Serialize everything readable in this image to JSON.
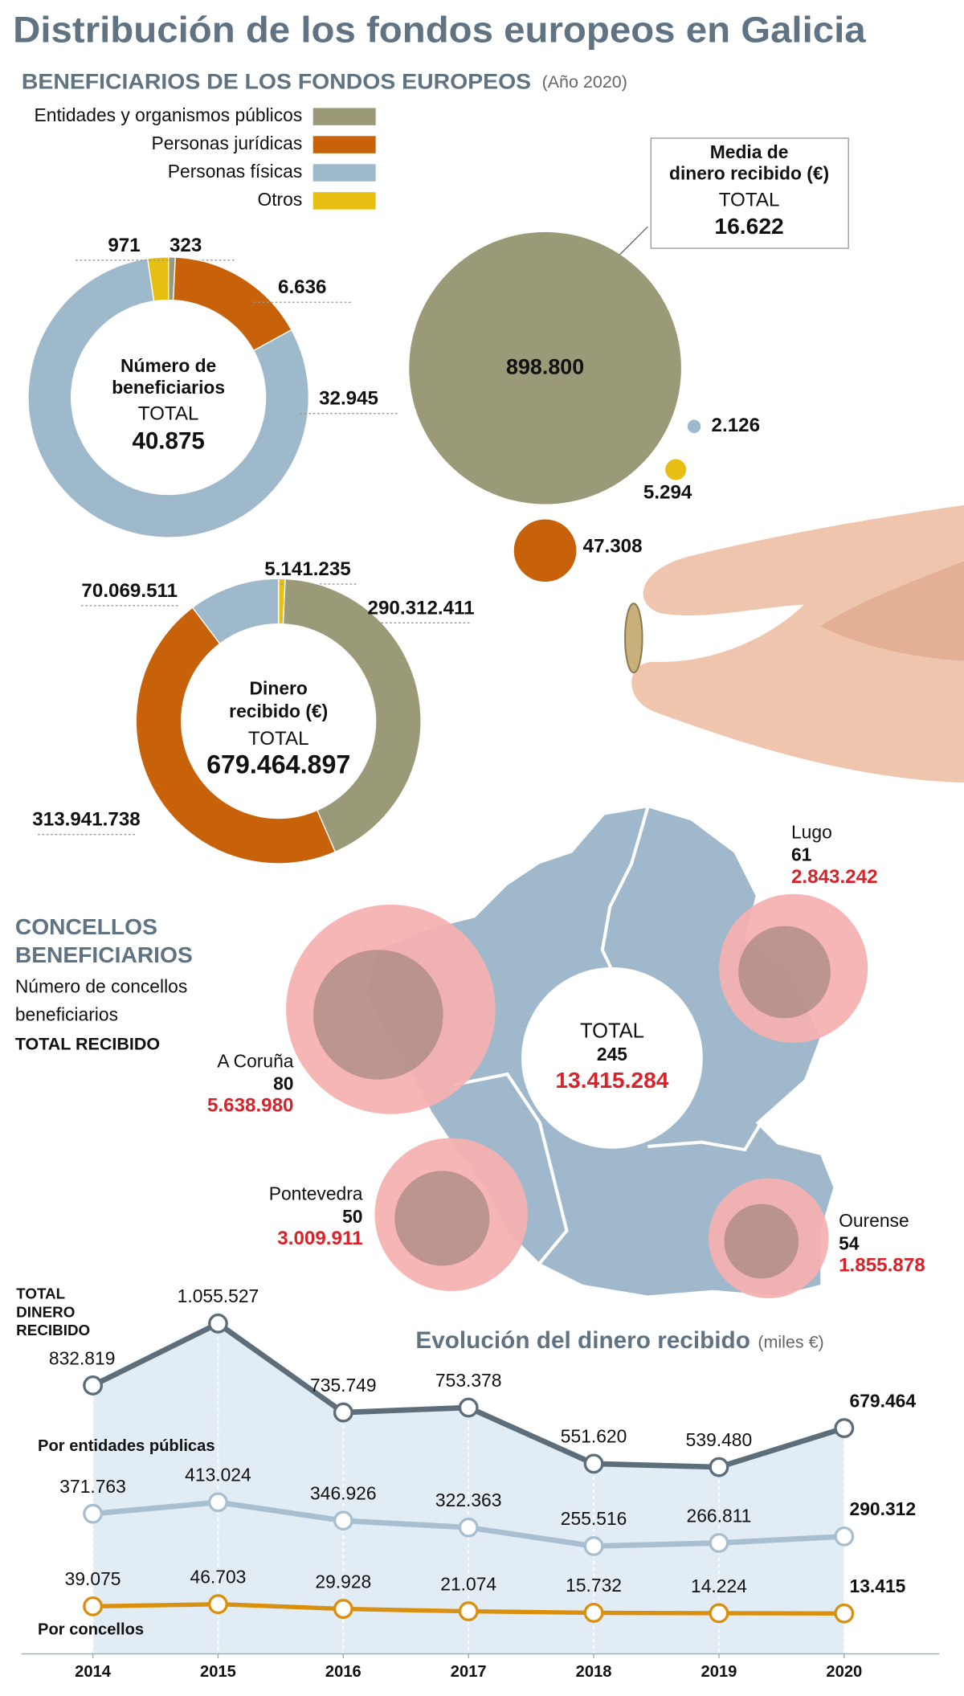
{
  "title": "Distribución de los fondos europeos en Galicia",
  "chart_data": [
    {
      "type": "donut",
      "title": "BENEFICIARIOS DE  LOS FONDOS EUROPEOS",
      "subtitle": "(Año 2020)",
      "categories": [
        "Entidades y organismos públicos",
        "Personas jurídicas",
        "Personas físicas",
        "Otros"
      ],
      "colors": [
        "#9a9a78",
        "#c8620a",
        "#9fb9cc",
        "#e6bf12"
      ],
      "center_lines": [
        "Número de",
        "beneficiarios"
      ],
      "total_word": "TOTAL",
      "total": "40.875",
      "values": [
        323,
        6636,
        32945,
        971
      ],
      "value_labels": [
        "323",
        "6.636",
        "32.945",
        "971"
      ]
    },
    {
      "type": "donut",
      "colors": [
        "#9a9a78",
        "#c8620a",
        "#9fb9cc",
        "#e6bf12"
      ],
      "center_lines": [
        "Dinero",
        "recibido (€)"
      ],
      "total_word": "TOTAL",
      "total": "679.464.897",
      "values": [
        290312411,
        313941738,
        70069511,
        5141235
      ],
      "value_labels": [
        "290.312.411",
        "313.941.738",
        "70.069.511",
        "5.141.235"
      ]
    },
    {
      "type": "bubble",
      "colors": [
        "#9a9a78",
        "#c8620a",
        "#9fb9cc",
        "#e6bf12"
      ],
      "title_lines": [
        "Media de",
        "dinero recibido (€)"
      ],
      "total_word": "TOTAL",
      "total": "16.622",
      "values": [
        898800,
        47308,
        2126,
        5294
      ],
      "value_labels": [
        "898.800",
        "47.308",
        "2.126",
        "5.294"
      ]
    },
    {
      "type": "map",
      "title_lines": [
        "CONCELLOS",
        "BENEFICIARIOS"
      ],
      "subtitle_lines": [
        "Número de concellos",
        "beneficiarios"
      ],
      "amount_caption": "TOTAL RECIBIDO",
      "regions": [
        {
          "name": "A Coruña",
          "count": 80,
          "amount": 5638980,
          "amount_label": "5.638.980"
        },
        {
          "name": "Lugo",
          "count": 61,
          "amount": 2843242,
          "amount_label": "2.843.242"
        },
        {
          "name": "Pontevedra",
          "count": 50,
          "amount": 3009911,
          "amount_label": "3.009.911"
        },
        {
          "name": "Ourense",
          "count": 54,
          "amount": 1855878,
          "amount_label": "1.855.878"
        }
      ],
      "total": {
        "label": "TOTAL",
        "count": 245,
        "amount": "13.415.284"
      }
    },
    {
      "type": "line",
      "title": "Evolución del dinero recibido",
      "subtitle": "(miles €)",
      "x": [
        2014,
        2015,
        2016,
        2017,
        2018,
        2019,
        2020
      ],
      "xlim": [
        2014,
        2020
      ],
      "xticks": [
        2014,
        2015,
        2016,
        2017,
        2018,
        2019,
        2020
      ],
      "ylim": [
        0,
        1100000
      ],
      "series": [
        {
          "name": "TOTAL DINERO RECIBIDO",
          "color": "#5d6e7a",
          "area": true,
          "values": [
            832819,
            1055527,
            735749,
            753378,
            551620,
            539480,
            679464
          ],
          "value_labels": [
            "832.819",
            "1.055.527",
            "735.749",
            "753.378",
            "551.620",
            "539.480",
            "679.464"
          ]
        },
        {
          "name": "Por entidades públicas",
          "color": "#a7bfd0",
          "area": false,
          "values": [
            371763,
            413024,
            346926,
            322363,
            255516,
            266811,
            290312
          ],
          "value_labels": [
            "371.763",
            "413.024",
            "346.926",
            "322.363",
            "255.516",
            "266.811",
            "290.312"
          ]
        },
        {
          "name": "Por concellos",
          "color": "#d9900f",
          "area": false,
          "values": [
            39075,
            46703,
            29928,
            21074,
            15732,
            14224,
            13415
          ],
          "value_labels": [
            "39.075",
            "46.703",
            "29.928",
            "21.074",
            "15.732",
            "14.224",
            "13.415"
          ]
        }
      ]
    }
  ]
}
